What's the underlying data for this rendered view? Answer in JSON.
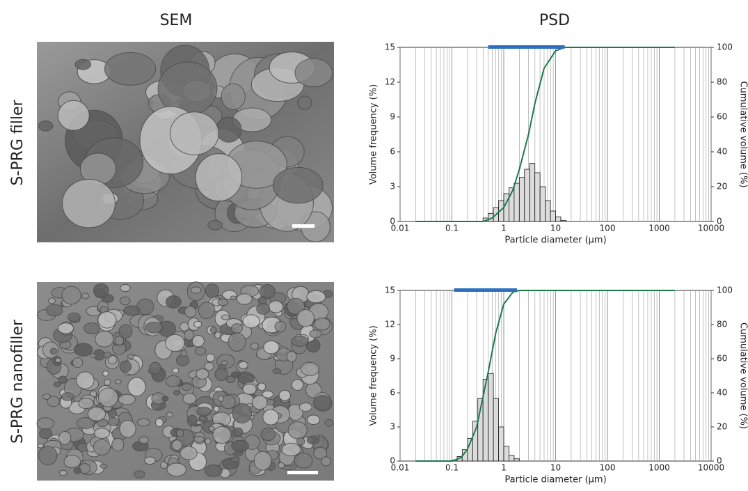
{
  "headers": {
    "sem": "SEM",
    "psd": "PSD"
  },
  "rows": [
    "S-PRG filler",
    "S-PRG nanofiller"
  ],
  "chart_data": [
    {
      "type": "histogram",
      "xlabel": "Particle diameter (µm)",
      "ylabel": "Volume frequency (%)",
      "y2label": "Cumulative volume (%)",
      "xscale": "log",
      "xlim": [
        0.01,
        10000
      ],
      "xticks": [
        0.01,
        0.1,
        1,
        10,
        100,
        1000,
        10000
      ],
      "ylim": [
        0,
        15
      ],
      "yticks": [
        0,
        3,
        6,
        9,
        12,
        15
      ],
      "y2lim": [
        0,
        100
      ],
      "y2ticks": [
        0,
        20,
        40,
        60,
        80,
        100
      ],
      "grid": true,
      "bins": [
        0.398,
        0.501,
        0.631,
        0.794,
        1,
        1.259,
        1.585,
        1.995,
        2.512,
        3.162,
        3.981,
        5.012,
        6.31,
        7.943,
        10,
        12.59,
        15.85
      ],
      "counts": [
        0.3,
        0.7,
        1.2,
        1.8,
        2.4,
        2.9,
        3.3,
        3.8,
        4.5,
        5.0,
        4.2,
        3.0,
        1.8,
        0.9,
        0.4,
        0.1
      ],
      "color": "#dcdcdc",
      "cumulative": {
        "axis": "y2",
        "color": "#1a7a4a",
        "x": [
          0.02,
          0.4,
          0.6,
          1,
          1.5,
          2,
          3,
          4,
          6,
          10,
          15,
          2000
        ],
        "values": [
          0,
          0,
          2,
          8,
          18,
          30,
          50,
          68,
          88,
          98,
          100,
          100
        ]
      },
      "range_bar": {
        "x": [
          0.5,
          15
        ],
        "color": "#2e6fc0"
      }
    },
    {
      "type": "histogram",
      "xlabel": "Particle diameter (µm)",
      "ylabel": "Volume frequency (%)",
      "y2label": "Cumulative volume (%)",
      "xscale": "log",
      "xlim": [
        0.01,
        10000
      ],
      "xticks": [
        0.01,
        0.1,
        1,
        10,
        100,
        1000,
        10000
      ],
      "ylim": [
        0,
        15
      ],
      "yticks": [
        0,
        3,
        6,
        9,
        12,
        15
      ],
      "y2lim": [
        0,
        100
      ],
      "y2ticks": [
        0,
        20,
        40,
        60,
        80,
        100
      ],
      "grid": true,
      "bins": [
        0.1,
        0.126,
        0.158,
        0.2,
        0.251,
        0.316,
        0.398,
        0.501,
        0.631,
        0.794,
        1,
        1.259,
        1.585,
        1.995
      ],
      "counts": [
        0.1,
        0.4,
        1.0,
        2.0,
        3.5,
        5.5,
        7.2,
        7.7,
        5.5,
        3.0,
        1.3,
        0.5,
        0.2
      ],
      "color": "#dcdcdc",
      "cumulative": {
        "axis": "y2",
        "color": "#1a7a4a",
        "x": [
          0.02,
          0.1,
          0.15,
          0.2,
          0.3,
          0.4,
          0.5,
          0.7,
          1,
          1.5,
          2,
          2000
        ],
        "values": [
          0,
          0,
          2,
          7,
          20,
          38,
          52,
          75,
          92,
          99,
          100,
          100
        ]
      },
      "range_bar": {
        "x": [
          0.11,
          1.8
        ],
        "color": "#2e6fc0"
      }
    }
  ]
}
